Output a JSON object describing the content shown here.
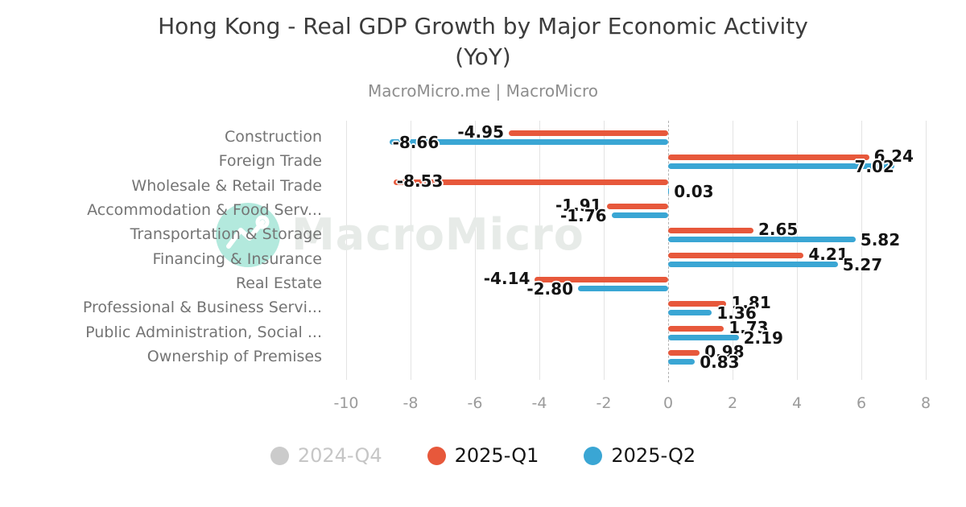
{
  "title": {
    "line1": "Hong Kong - Real GDP Growth by Major Economic Activity",
    "line2": "(YoY)"
  },
  "subtitle": "MacroMicro.me | MacroMicro",
  "watermark": {
    "text": "MacroMicro",
    "logo_icon": "macromicro-chart-logo",
    "circle_color": "#b3e9dd"
  },
  "chart_data": {
    "type": "bar",
    "orientation": "horizontal",
    "categories": [
      "Construction",
      "Foreign Trade",
      "Wholesale & Retail Trade",
      "Accommodation & Food Serv...",
      "Transportation & Storage",
      "Financing & Insurance",
      "Real Estate",
      "Professional & Business Servi...",
      "Public Administration, Social ...",
      "Ownership of Premises"
    ],
    "series": [
      {
        "name": "2024-Q4",
        "color": "#cbcbcb",
        "hidden": true,
        "values": []
      },
      {
        "name": "2025-Q1",
        "color": "#e7583b",
        "hidden": false,
        "values": [
          -4.95,
          6.24,
          -8.53,
          -1.91,
          2.65,
          4.21,
          -4.14,
          1.81,
          1.73,
          0.98
        ]
      },
      {
        "name": "2025-Q2",
        "color": "#3aa6d4",
        "hidden": false,
        "values": [
          -8.66,
          7.02,
          0.03,
          -1.76,
          5.82,
          5.27,
          -2.8,
          1.36,
          2.19,
          0.83
        ]
      }
    ],
    "xticks": [
      -10,
      -8,
      -6,
      -4,
      -2,
      0,
      2,
      4,
      6,
      8
    ],
    "xlim": [
      -10.4,
      8.4
    ],
    "grid": true,
    "zero_line": "dashed",
    "legend_position": "bottom",
    "value_label_decimals": 2
  }
}
